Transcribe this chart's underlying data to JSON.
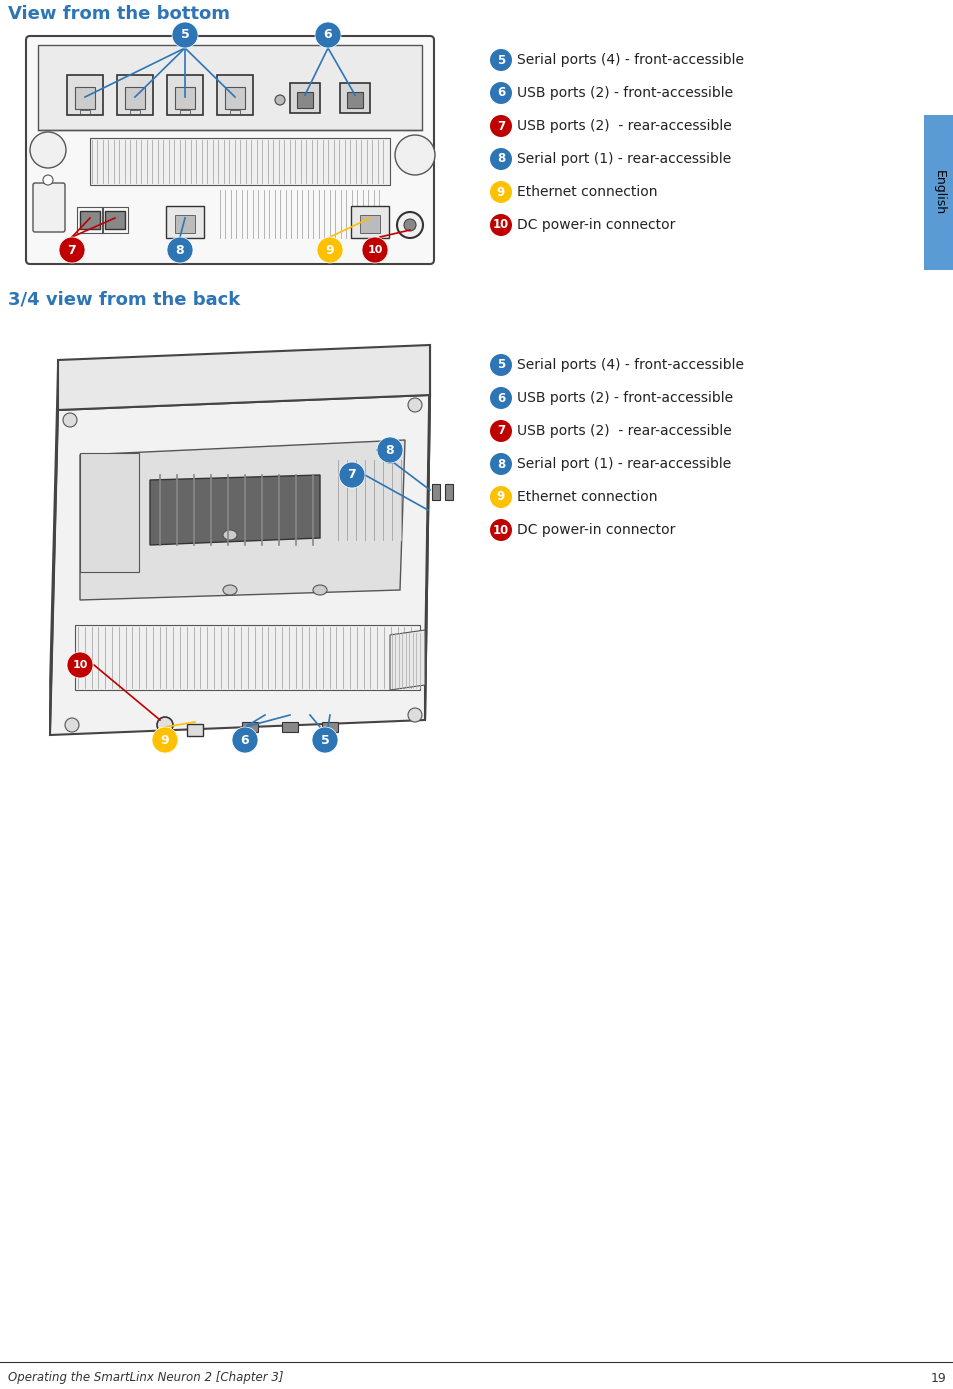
{
  "title1": "View from the bottom",
  "title2": "3/4 view from the back",
  "title_color": "#2E75B6",
  "title_fontsize": 13,
  "footer_text": "Operating the SmartLinx Neuron 2 [Chapter 3]",
  "footer_page": "19",
  "english_tab_color": "#5B9BD5",
  "english_text": "English",
  "labels": [
    {
      "num": "5",
      "color": "#2E75B6",
      "text": "Serial ports (4) - front-accessible"
    },
    {
      "num": "6",
      "color": "#2E75B6",
      "text": "USB ports (2) - front-accessible"
    },
    {
      "num": "7",
      "color": "#C00000",
      "text": "USB ports (2)  - rear-accessible"
    },
    {
      "num": "8",
      "color": "#2E75B6",
      "text": "Serial port (1) - rear-accessible"
    },
    {
      "num": "9",
      "color": "#FFC000",
      "text": "Ethernet connection"
    },
    {
      "num": "10",
      "color": "#C00000",
      "text": "DC power-in connector"
    }
  ],
  "label_fontsize": 10,
  "line_color_blue": "#2E75B6",
  "line_color_red": "#C00000",
  "line_color_yellow": "#FFC000",
  "bg_color": "#FFFFFF"
}
